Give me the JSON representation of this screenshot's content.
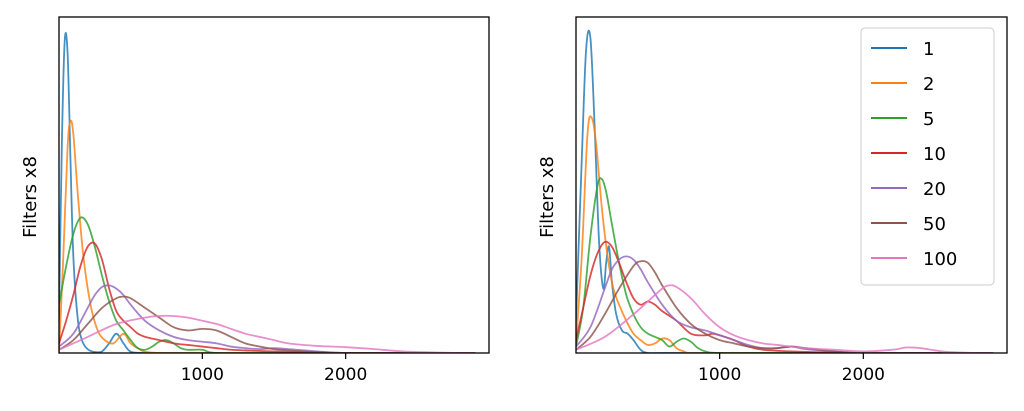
{
  "chart_data": [
    {
      "type": "line",
      "ylabel": "Filters x8",
      "xlim": [
        0,
        3000
      ],
      "ylim": [
        0,
        1
      ],
      "xticks": [
        1000,
        2000
      ],
      "xtick_labels": [
        "1000",
        "2000"
      ],
      "yticks": [],
      "legend": "none",
      "grid": false,
      "series": [
        {
          "name": "1",
          "color": "#1f77b4",
          "x": [
            0,
            20,
            40,
            60,
            80,
            100,
            130,
            160,
            200,
            250,
            300,
            350,
            400,
            450,
            500,
            600,
            800,
            1000,
            1500,
            2000,
            2500,
            2900
          ],
          "y": [
            0.1,
            0.65,
            0.97,
            0.93,
            0.6,
            0.3,
            0.11,
            0.04,
            0.012,
            0.003,
            0.005,
            0.03,
            0.06,
            0.03,
            0.004,
            0.0,
            0.0,
            0.0,
            0.0,
            0.0,
            0.0,
            0.0
          ]
        },
        {
          "name": "2",
          "color": "#ff7f0e",
          "x": [
            0,
            30,
            60,
            80,
            100,
            130,
            170,
            220,
            270,
            320,
            380,
            450,
            500,
            560,
            600,
            700,
            800,
            1000,
            1500,
            2000,
            2500,
            2900
          ],
          "y": [
            0.0,
            0.3,
            0.64,
            0.72,
            0.68,
            0.5,
            0.3,
            0.15,
            0.07,
            0.04,
            0.03,
            0.06,
            0.03,
            0.012,
            0.004,
            0.0,
            0.0,
            0.0,
            0.0,
            0.0,
            0.0,
            0.0
          ]
        },
        {
          "name": "5",
          "color": "#2ca02c",
          "x": [
            0,
            50,
            100,
            150,
            200,
            250,
            300,
            350,
            400,
            450,
            500,
            550,
            600,
            650,
            700,
            750,
            800,
            850,
            900,
            1000,
            1100,
            1500,
            2000,
            2500,
            2900
          ],
          "y": [
            0.15,
            0.27,
            0.37,
            0.42,
            0.4,
            0.33,
            0.24,
            0.16,
            0.1,
            0.07,
            0.04,
            0.015,
            0.01,
            0.02,
            0.035,
            0.04,
            0.03,
            0.015,
            0.01,
            0.01,
            0.0,
            0.0,
            0.0,
            0.0,
            0.0
          ]
        },
        {
          "name": "10",
          "color": "#d62728",
          "x": [
            0,
            50,
            100,
            150,
            200,
            250,
            300,
            350,
            400,
            450,
            500,
            550,
            600,
            700,
            800,
            900,
            1000,
            1100,
            1200,
            1300,
            1500,
            2000,
            2500,
            2900
          ],
          "y": [
            0.03,
            0.1,
            0.18,
            0.27,
            0.33,
            0.34,
            0.29,
            0.2,
            0.13,
            0.1,
            0.08,
            0.06,
            0.05,
            0.04,
            0.03,
            0.025,
            0.02,
            0.015,
            0.01,
            0.008,
            0.005,
            0.0,
            0.0,
            0.0
          ]
        },
        {
          "name": "20",
          "color": "#9467bd",
          "x": [
            0,
            100,
            200,
            250,
            300,
            350,
            400,
            450,
            500,
            600,
            700,
            800,
            900,
            1000,
            1100,
            1200,
            1300,
            1400,
            1500,
            1600,
            1800,
            2000,
            2500,
            2900
          ],
          "y": [
            0.02,
            0.06,
            0.14,
            0.18,
            0.205,
            0.21,
            0.2,
            0.18,
            0.15,
            0.1,
            0.07,
            0.05,
            0.04,
            0.035,
            0.03,
            0.02,
            0.015,
            0.012,
            0.015,
            0.012,
            0.005,
            0.0,
            0.0,
            0.0
          ]
        },
        {
          "name": "50",
          "color": "#8c564b",
          "x": [
            0,
            100,
            200,
            300,
            400,
            450,
            500,
            600,
            700,
            800,
            900,
            1000,
            1100,
            1200,
            1300,
            1400,
            1500,
            1600,
            1700,
            1800,
            2000,
            2500,
            2900
          ],
          "y": [
            0.01,
            0.04,
            0.09,
            0.14,
            0.17,
            0.175,
            0.17,
            0.14,
            0.11,
            0.08,
            0.07,
            0.075,
            0.07,
            0.05,
            0.03,
            0.02,
            0.012,
            0.008,
            0.005,
            0.003,
            0.0,
            0.0,
            0.0
          ]
        },
        {
          "name": "100",
          "color": "#e377c2",
          "x": [
            0,
            200,
            400,
            600,
            700,
            800,
            900,
            1000,
            1100,
            1200,
            1300,
            1400,
            1500,
            1600,
            1800,
            2000,
            2200,
            2400,
            2600,
            2800,
            2900
          ],
          "y": [
            0.01,
            0.05,
            0.09,
            0.11,
            0.115,
            0.115,
            0.11,
            0.1,
            0.09,
            0.075,
            0.06,
            0.05,
            0.04,
            0.03,
            0.022,
            0.018,
            0.012,
            0.005,
            0.002,
            0.0,
            0.0
          ]
        }
      ]
    },
    {
      "type": "line",
      "ylabel": "Filters x8",
      "xlim": [
        0,
        3000
      ],
      "ylim": [
        0,
        1
      ],
      "xticks": [
        1000,
        2000
      ],
      "xtick_labels": [
        "1000",
        "2000"
      ],
      "yticks": [],
      "legend": "top-right",
      "grid": false,
      "series": [
        {
          "name": "1",
          "color": "#1f77b4",
          "x": [
            0,
            40,
            70,
            100,
            130,
            160,
            190,
            210,
            230,
            250,
            280,
            320,
            360,
            400,
            450,
            500,
            600,
            1000,
            1500,
            2000,
            2500,
            2900
          ],
          "y": [
            0.1,
            0.6,
            0.94,
            0.98,
            0.7,
            0.35,
            0.2,
            0.28,
            0.33,
            0.22,
            0.12,
            0.07,
            0.06,
            0.04,
            0.01,
            0.0,
            0.0,
            0.0,
            0.0,
            0.0,
            0.0,
            0.0
          ]
        },
        {
          "name": "2",
          "color": "#ff7f0e",
          "x": [
            0,
            40,
            80,
            110,
            140,
            180,
            220,
            260,
            300,
            350,
            400,
            450,
            500,
            550,
            600,
            650,
            700,
            750,
            800,
            1000,
            1500,
            2000,
            2500,
            2900
          ],
          "y": [
            0.03,
            0.3,
            0.68,
            0.73,
            0.65,
            0.45,
            0.3,
            0.2,
            0.15,
            0.1,
            0.06,
            0.04,
            0.025,
            0.03,
            0.045,
            0.04,
            0.015,
            0.005,
            0.0,
            0.0,
            0.0,
            0.0,
            0.0,
            0.0
          ]
        },
        {
          "name": "5",
          "color": "#2ca02c",
          "x": [
            0,
            50,
            100,
            150,
            180,
            210,
            250,
            300,
            350,
            400,
            450,
            500,
            550,
            600,
            650,
            700,
            750,
            800,
            850,
            900,
            1000,
            1500,
            2000,
            2500,
            2900
          ],
          "y": [
            0.02,
            0.14,
            0.36,
            0.52,
            0.54,
            0.5,
            0.4,
            0.28,
            0.18,
            0.12,
            0.08,
            0.06,
            0.05,
            0.04,
            0.02,
            0.035,
            0.045,
            0.035,
            0.015,
            0.005,
            0.0,
            0.0,
            0.0,
            0.0,
            0.0
          ]
        },
        {
          "name": "10",
          "color": "#d62728",
          "x": [
            0,
            50,
            100,
            150,
            200,
            250,
            300,
            350,
            400,
            450,
            500,
            550,
            600,
            700,
            800,
            900,
            950,
            1000,
            1100,
            1200,
            1300,
            1500,
            2000,
            2500,
            2900
          ],
          "y": [
            0.04,
            0.14,
            0.24,
            0.31,
            0.345,
            0.33,
            0.28,
            0.22,
            0.17,
            0.15,
            0.16,
            0.15,
            0.13,
            0.1,
            0.06,
            0.055,
            0.06,
            0.055,
            0.04,
            0.02,
            0.01,
            0.005,
            0.0,
            0.0,
            0.0
          ]
        },
        {
          "name": "20",
          "color": "#9467bd",
          "x": [
            0,
            100,
            200,
            250,
            300,
            350,
            400,
            450,
            500,
            600,
            700,
            800,
            900,
            1000,
            1100,
            1200,
            1300,
            1400,
            1500,
            1600,
            1800,
            2000,
            2500,
            2900
          ],
          "y": [
            0.02,
            0.08,
            0.2,
            0.26,
            0.29,
            0.3,
            0.29,
            0.26,
            0.22,
            0.15,
            0.1,
            0.08,
            0.07,
            0.055,
            0.04,
            0.025,
            0.015,
            0.015,
            0.02,
            0.012,
            0.005,
            0.0,
            0.0,
            0.0
          ]
        },
        {
          "name": "50",
          "color": "#8c564b",
          "x": [
            0,
            100,
            200,
            300,
            400,
            450,
            500,
            550,
            600,
            700,
            800,
            900,
            1000,
            1100,
            1200,
            1300,
            1400,
            1500,
            1600,
            1800,
            2000,
            2500,
            2900
          ],
          "y": [
            0.01,
            0.05,
            0.12,
            0.2,
            0.27,
            0.285,
            0.28,
            0.25,
            0.21,
            0.14,
            0.09,
            0.06,
            0.04,
            0.03,
            0.02,
            0.015,
            0.015,
            0.02,
            0.015,
            0.005,
            0.0,
            0.0,
            0.0
          ]
        },
        {
          "name": "100",
          "color": "#e377c2",
          "x": [
            0,
            200,
            400,
            500,
            600,
            650,
            700,
            800,
            900,
            1000,
            1100,
            1200,
            1300,
            1400,
            1600,
            1800,
            2000,
            2200,
            2300,
            2400,
            2500,
            2600,
            2800,
            2900
          ],
          "y": [
            0.01,
            0.05,
            0.12,
            0.16,
            0.2,
            0.21,
            0.205,
            0.17,
            0.12,
            0.08,
            0.055,
            0.04,
            0.03,
            0.025,
            0.015,
            0.01,
            0.005,
            0.01,
            0.017,
            0.015,
            0.008,
            0.003,
            0.0,
            0.0
          ]
        }
      ]
    }
  ]
}
